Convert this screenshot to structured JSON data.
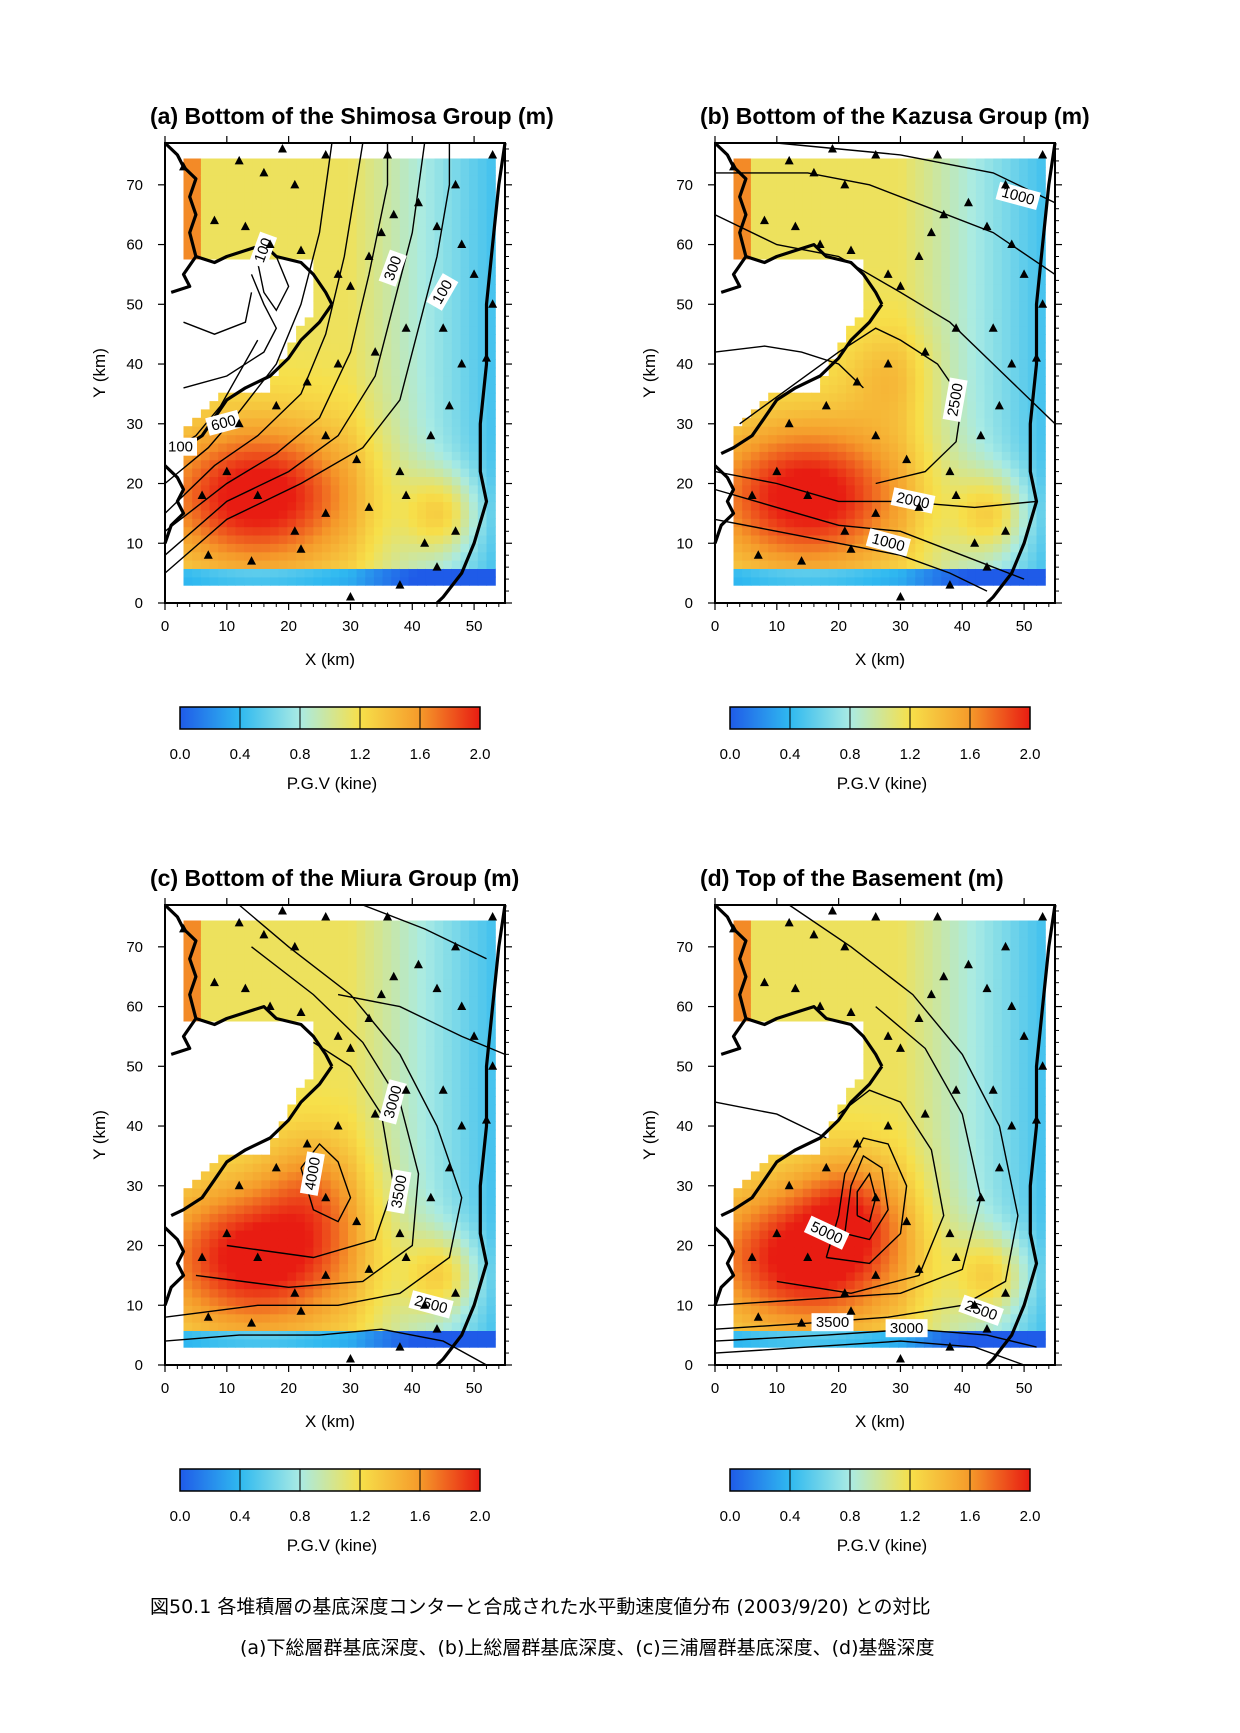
{
  "panels": [
    {
      "id": "a",
      "title": "(a) Bottom of the Shimosa Group (m)",
      "contour_labels": [
        "100",
        "600",
        "300",
        "100",
        "100"
      ]
    },
    {
      "id": "b",
      "title": "(b) Bottom of the Kazusa Group (m)",
      "contour_labels": [
        "1000",
        "2500",
        "2000",
        "1000"
      ]
    },
    {
      "id": "c",
      "title": "(c)  Bottom of the Miura Group (m)",
      "contour_labels": [
        "3000",
        "4000",
        "3500",
        "2500"
      ]
    },
    {
      "id": "d",
      "title": "(d)  Top of the Basement (m)",
      "contour_labels": [
        "5000",
        "3500",
        "3000",
        "2500"
      ]
    }
  ],
  "axes": {
    "xlabel": "X (km)",
    "ylabel": "Y (km)",
    "xticks": [
      "0",
      "10",
      "20",
      "30",
      "40",
      "50"
    ],
    "yticks": [
      "0",
      "10",
      "20",
      "30",
      "40",
      "50",
      "60",
      "70"
    ]
  },
  "colorbar": {
    "ticks": [
      "0.0",
      "0.4",
      "0.8",
      "1.2",
      "1.6",
      "2.0"
    ],
    "label": "P.G.V (kine)",
    "colors": [
      "#1f5be8",
      "#2fb9f0",
      "#a9ebe4",
      "#f7e04a",
      "#f59a2a",
      "#e81c12"
    ]
  },
  "caption": {
    "line1": "図50.1 各堆積層の基底深度コンターと合成された水平動速度値分布 (2003/9/20) との対比",
    "line2": "(a)下総層群基底深度、(b)上総層群基底深度、(c)三浦層群基底深度、(d)基盤深度"
  },
  "chart_data": [
    {
      "type": "heatmap",
      "title": "(a) Bottom of the Shimosa Group (m)",
      "xlabel": "X (km)",
      "ylabel": "Y (km)",
      "xlim": [
        0,
        55
      ],
      "ylim": [
        0,
        77
      ],
      "colorbar": {
        "label": "P.G.V (kine)",
        "range": [
          0.0,
          2.0
        ]
      },
      "contour_levels_labeled": [
        100,
        600,
        300,
        100,
        100
      ]
    },
    {
      "type": "heatmap",
      "title": "(b) Bottom of the Kazusa Group (m)",
      "xlabel": "X (km)",
      "ylabel": "Y (km)",
      "xlim": [
        0,
        55
      ],
      "ylim": [
        0,
        77
      ],
      "colorbar": {
        "label": "P.G.V (kine)",
        "range": [
          0.0,
          2.0
        ]
      },
      "contour_levels_labeled": [
        1000,
        2500,
        2000,
        1000
      ]
    },
    {
      "type": "heatmap",
      "title": "(c)  Bottom of the Miura Group (m)",
      "xlabel": "X (km)",
      "ylabel": "Y (km)",
      "xlim": [
        0,
        55
      ],
      "ylim": [
        0,
        77
      ],
      "colorbar": {
        "label": "P.G.V (kine)",
        "range": [
          0.0,
          2.0
        ]
      },
      "contour_levels_labeled": [
        3000,
        4000,
        3500,
        2500
      ]
    },
    {
      "type": "heatmap",
      "title": "(d)  Top of the Basement (m)",
      "xlabel": "X (km)",
      "ylabel": "Y (km)",
      "xlim": [
        0,
        55
      ],
      "ylim": [
        0,
        77
      ],
      "colorbar": {
        "label": "P.G.V (kine)",
        "range": [
          0.0,
          2.0
        ]
      },
      "contour_levels_labeled": [
        5000,
        3500,
        3000,
        2500
      ]
    }
  ]
}
